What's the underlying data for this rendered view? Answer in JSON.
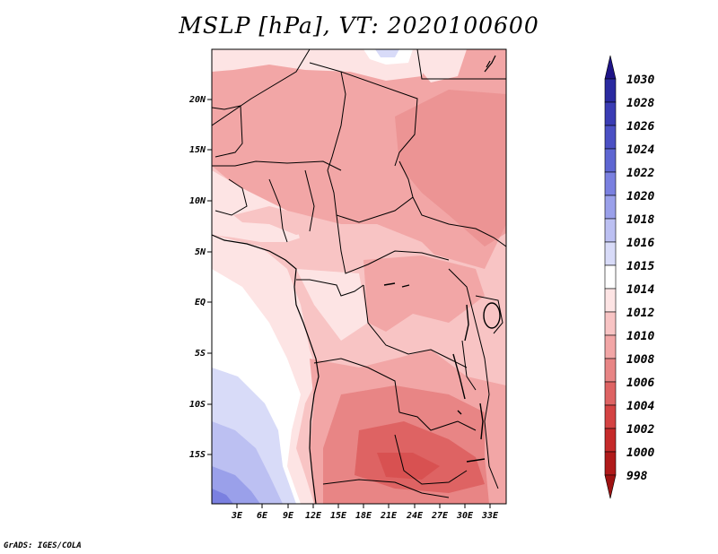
{
  "title": "MSLP [hPa], VT: 2020100600",
  "footer": "GrADS: IGES/COLA",
  "map": {
    "lon_labels": [
      "3E",
      "6E",
      "9E",
      "12E",
      "15E",
      "18E",
      "21E",
      "24E",
      "27E",
      "30E",
      "33E"
    ],
    "lat_labels": [
      "20N",
      "15N",
      "10N",
      "5N",
      "EQ",
      "5S",
      "10S",
      "15S"
    ]
  },
  "colorbar": {
    "labels": [
      "1030",
      "1028",
      "1026",
      "1024",
      "1022",
      "1020",
      "1018",
      "1016",
      "1015",
      "1014",
      "1012",
      "1010",
      "1008",
      "1006",
      "1004",
      "1002",
      "1000",
      "998"
    ],
    "colors": [
      "#1e1487",
      "#2a2aa0",
      "#3a3cb4",
      "#4b50c4",
      "#5e66d2",
      "#7a80e0",
      "#9aa0ea",
      "#bcc0f2",
      "#d8dbf8",
      "#ffffff",
      "#fde4e4",
      "#f8c4c4",
      "#f2a6a6",
      "#e88585",
      "#de6363",
      "#d44343",
      "#c52a2a",
      "#b01a1a",
      "#9e1212"
    ]
  }
}
